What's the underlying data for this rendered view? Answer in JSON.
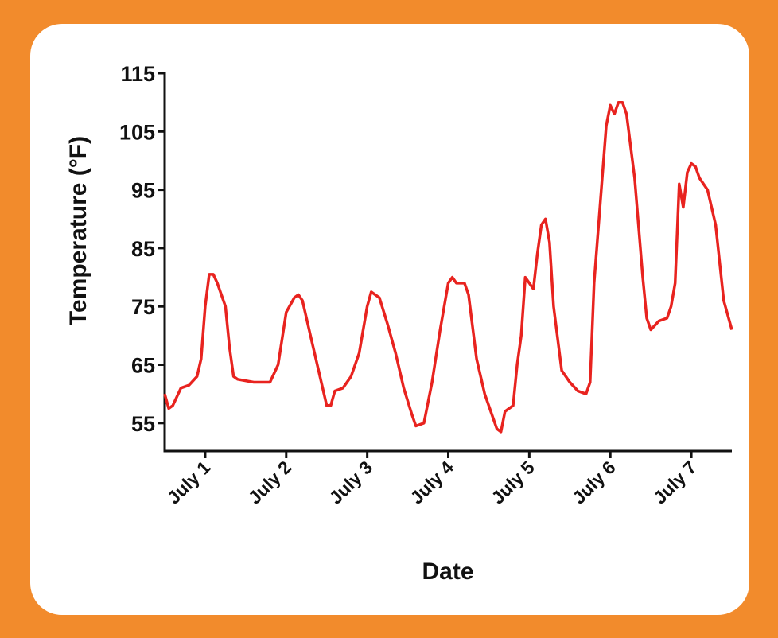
{
  "chart_data": {
    "type": "line",
    "y_label": "Temperature (°F)",
    "x_label": "Date",
    "color": "#e8231f",
    "x": [
      0.5,
      0.55,
      0.6,
      0.7,
      0.8,
      0.9,
      0.95,
      1.0,
      1.05,
      1.1,
      1.15,
      1.25,
      1.3,
      1.35,
      1.4,
      1.6,
      1.8,
      1.9,
      2.0,
      2.1,
      2.15,
      2.2,
      2.3,
      2.4,
      2.5,
      2.55,
      2.6,
      2.7,
      2.8,
      2.9,
      3.0,
      3.05,
      3.15,
      3.25,
      3.35,
      3.45,
      3.55,
      3.6,
      3.7,
      3.8,
      3.9,
      4.0,
      4.05,
      4.1,
      4.2,
      4.25,
      4.35,
      4.45,
      4.55,
      4.6,
      4.65,
      4.7,
      4.8,
      4.85,
      4.9,
      4.95,
      5.0,
      5.05,
      5.1,
      5.15,
      5.2,
      5.25,
      5.3,
      5.4,
      5.5,
      5.6,
      5.7,
      5.75,
      5.8,
      5.9,
      5.95,
      6.0,
      6.05,
      6.1,
      6.15,
      6.2,
      6.3,
      6.4,
      6.45,
      6.5,
      6.6,
      6.7,
      6.75,
      6.8,
      6.85,
      6.9,
      6.95,
      7.0,
      7.05,
      7.1,
      7.2,
      7.3,
      7.4,
      7.5
    ],
    "values": [
      60,
      57.5,
      58,
      61,
      61.5,
      63,
      66,
      75,
      80.5,
      80.5,
      79,
      75,
      68,
      63,
      62.5,
      62,
      62,
      65,
      74,
      76.5,
      77,
      76,
      70,
      64,
      58,
      58,
      60.5,
      61,
      63,
      67,
      75,
      77.5,
      76.5,
      72,
      67,
      61,
      56.5,
      54.5,
      55,
      62,
      71,
      79,
      80,
      79,
      79,
      77,
      66,
      60,
      56,
      54,
      53.5,
      57,
      58,
      65,
      70,
      80,
      79,
      78,
      84,
      89,
      90,
      86,
      75,
      64,
      62,
      60.5,
      60,
      62,
      79,
      97,
      106,
      109.5,
      108,
      110,
      110,
      108,
      97,
      80,
      73,
      71,
      72.5,
      73,
      75,
      79,
      96,
      92,
      98,
      99.5,
      99,
      97,
      95,
      89,
      76,
      71
    ],
    "xlim": [
      0.5,
      7.5
    ],
    "xticks": [
      {
        "value": 1,
        "label": "July 1"
      },
      {
        "value": 2,
        "label": "July 2"
      },
      {
        "value": 3,
        "label": "July 3"
      },
      {
        "value": 4,
        "label": "July 4"
      },
      {
        "value": 5,
        "label": "July 5"
      },
      {
        "value": 6,
        "label": "July 6"
      },
      {
        "value": 7,
        "label": "July 7"
      }
    ],
    "ylim": [
      50.2,
      115
    ],
    "yticks": [
      55,
      65,
      75,
      85,
      95,
      105,
      115
    ]
  }
}
